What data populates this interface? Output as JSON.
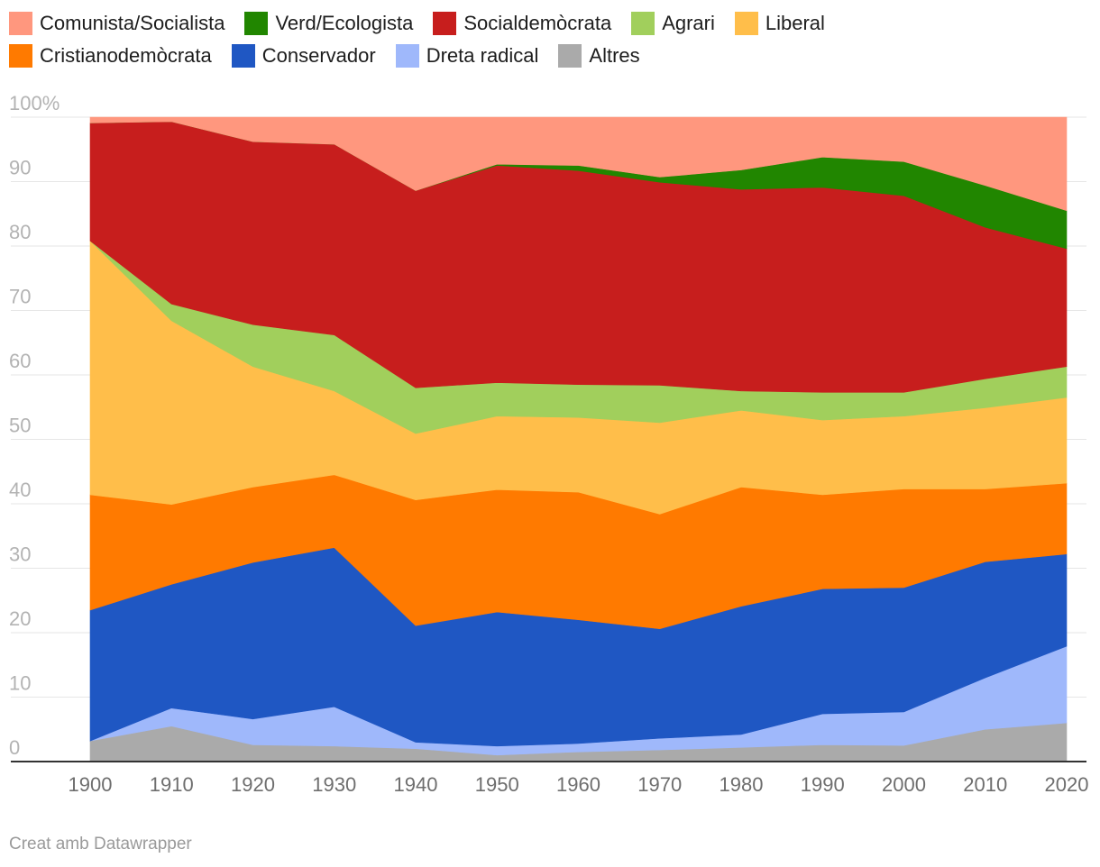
{
  "chart_data": {
    "type": "area",
    "stacked": true,
    "x": [
      1900,
      1910,
      1920,
      1930,
      1940,
      1950,
      1960,
      1970,
      1980,
      1990,
      2000,
      2010,
      2020
    ],
    "ylim": [
      0,
      100
    ],
    "yticks": [
      "0",
      "10",
      "20",
      "30",
      "40",
      "50",
      "60",
      "70",
      "80",
      "90",
      "100%"
    ],
    "ytick_values": [
      0,
      10,
      20,
      30,
      40,
      50,
      60,
      70,
      80,
      90,
      100
    ],
    "grid": true,
    "legend_position": "top",
    "series": [
      {
        "name": "Altres",
        "color": "#aaaaaa",
        "values": [
          3.2,
          5.5,
          2.6,
          2.4,
          2.0,
          1.0,
          1.5,
          1.8,
          2.2,
          2.6,
          2.5,
          5.0,
          6.0
        ]
      },
      {
        "name": "Dreta radical",
        "color": "#9fb8fb",
        "values": [
          0.0,
          2.8,
          4.0,
          6.1,
          1.0,
          1.4,
          1.3,
          1.8,
          2.0,
          4.8,
          5.2,
          8.0,
          11.9
        ]
      },
      {
        "name": "Conservador",
        "color": "#1f57c3",
        "values": [
          20.3,
          19.2,
          24.3,
          24.7,
          18.1,
          20.8,
          19.2,
          17.0,
          19.9,
          19.4,
          19.3,
          18.0,
          14.3
        ]
      },
      {
        "name": "Cristianodemòcrata",
        "color": "#ff7a00",
        "values": [
          17.9,
          12.4,
          11.7,
          11.3,
          19.5,
          19.0,
          19.8,
          17.8,
          18.5,
          14.6,
          15.3,
          11.3,
          11.0
        ]
      },
      {
        "name": "Liberal",
        "color": "#ffbe4a",
        "values": [
          39.4,
          28.5,
          18.7,
          13.0,
          10.3,
          11.4,
          11.6,
          14.2,
          11.9,
          11.6,
          11.3,
          12.6,
          13.3
        ]
      },
      {
        "name": "Agrari",
        "color": "#a1cf5c",
        "values": [
          0.0,
          2.6,
          6.5,
          8.7,
          7.1,
          5.2,
          5.1,
          5.8,
          3.0,
          4.3,
          3.7,
          4.5,
          4.8
        ]
      },
      {
        "name": "Socialdemòcrata",
        "color": "#c71e1d",
        "values": [
          18.3,
          28.3,
          28.4,
          29.6,
          30.6,
          33.7,
          33.2,
          31.5,
          31.3,
          31.8,
          30.5,
          23.5,
          18.3
        ]
      },
      {
        "name": "Verd/Ecologista",
        "color": "#218600",
        "values": [
          0.0,
          0.0,
          0.0,
          0.0,
          0.0,
          0.2,
          0.8,
          0.8,
          3.0,
          4.7,
          5.3,
          6.5,
          5.9
        ]
      },
      {
        "name": "Comunista/Socialista",
        "color": "#ff977e",
        "values": [
          0.9,
          0.7,
          3.8,
          4.2,
          11.4,
          7.3,
          7.5,
          9.3,
          8.2,
          6.2,
          6.9,
          10.6,
          14.5
        ]
      }
    ],
    "legend_rows": [
      [
        "Comunista/Socialista",
        "Verd/Ecologista",
        "Socialdemòcrata",
        "Agrari",
        "Liberal"
      ],
      [
        "Cristianodemòcrata",
        "Conservador",
        "Dreta radical",
        "Altres"
      ]
    ]
  },
  "footer": {
    "credit": "Creat amb Datawrapper"
  }
}
